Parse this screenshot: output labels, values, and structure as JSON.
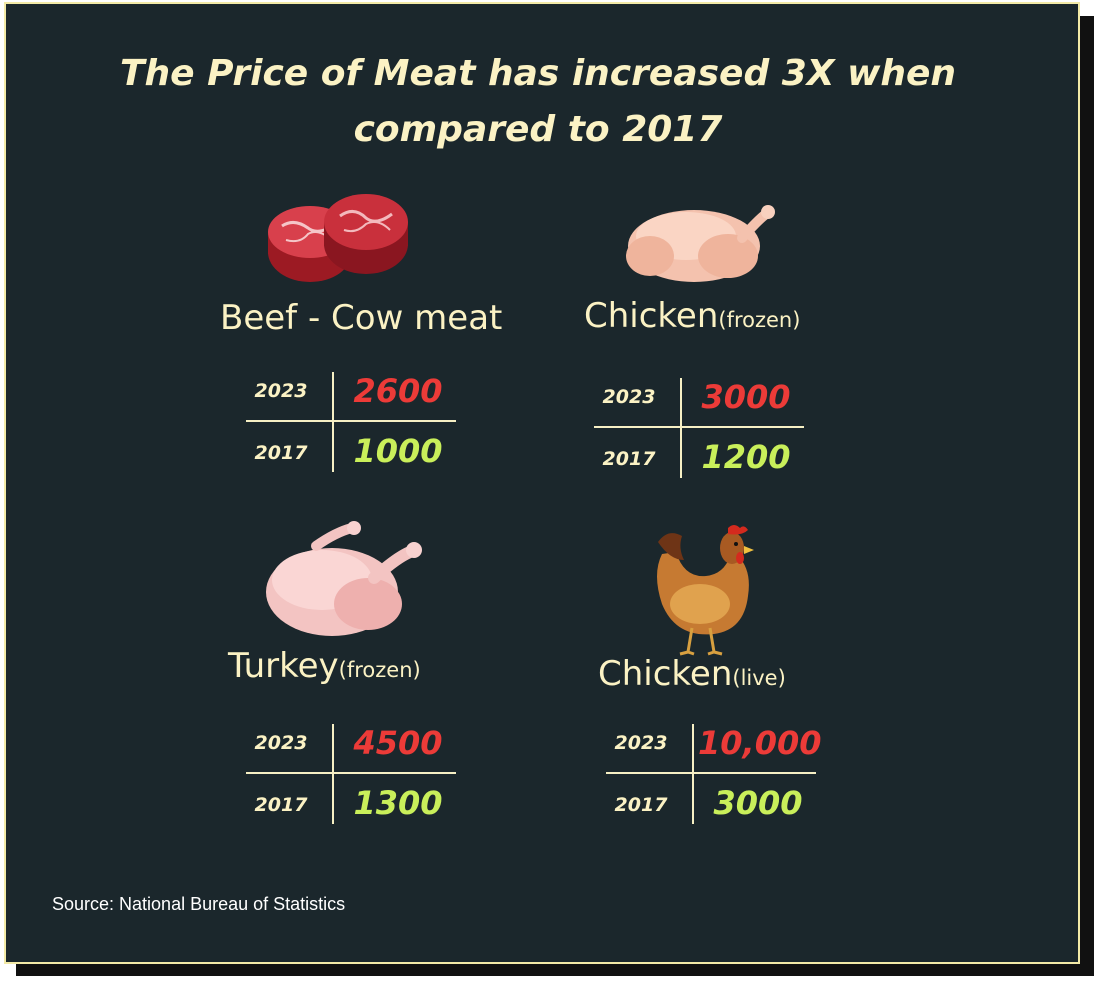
{
  "title": "The Price of Meat has increased 3X when compared to 2017",
  "source": "Source: National Bureau of Statistics",
  "items": [
    {
      "name": "Beef - Cow meat",
      "qualifier": "",
      "icon": "beef-steak-icon",
      "year_recent": "2023",
      "price_recent": "2600",
      "year_base": "2017",
      "price_base": "1000"
    },
    {
      "name": "Chicken",
      "qualifier": "(frozen)",
      "icon": "frozen-chicken-icon",
      "year_recent": "2023",
      "price_recent": "3000",
      "year_base": "2017",
      "price_base": "1200"
    },
    {
      "name": "Turkey",
      "qualifier": "(frozen)",
      "icon": "frozen-turkey-icon",
      "year_recent": "2023",
      "price_recent": "4500",
      "year_base": "2017",
      "price_base": "1300"
    },
    {
      "name": "Chicken",
      "qualifier": "(live)",
      "icon": "live-hen-icon",
      "year_recent": "2023",
      "price_recent": "10,000",
      "year_base": "2017",
      "price_base": "3000"
    }
  ],
  "colors": {
    "background": "#1b272c",
    "recent_price": "#ec3b38",
    "base_price": "#c9ef5a",
    "text": "#fbf2c4"
  }
}
